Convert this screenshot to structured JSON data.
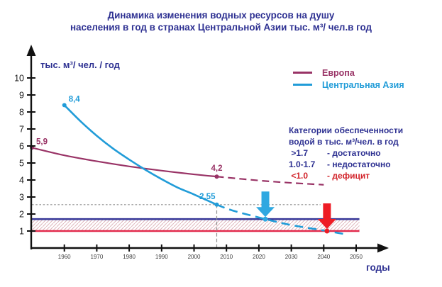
{
  "title": {
    "line1": "Динамика изменения водных ресурсов на душу",
    "line2": "населения в год в странах Центральной Азии тыс. м³/ чел.в год"
  },
  "legend": [
    {
      "label": "Европа",
      "color": "#993366"
    },
    {
      "label": "Центральная Азия",
      "color": "#219CD8"
    }
  ],
  "categories": {
    "heading_line1": "Категории обеспеченности",
    "heading_line2": "водой в тыс. м³/чел. в год",
    "rows": [
      {
        "range": ">1.7",
        "desc": "- достаточно",
        "color": "#2E3192"
      },
      {
        "range": "1.0-1.7",
        "desc": "- недостаточно",
        "color": "#2E3192"
      },
      {
        "range": "<1.0",
        "desc": "- дефицит",
        "color": "#D2232A"
      }
    ]
  },
  "chart_data": {
    "type": "line",
    "title": "Динамика изменения водных ресурсов на душу населения в год в странах Центральной Азии тыс. м³/ чел.в год",
    "ylabel": "тыс. м³/ чел. / год",
    "xlabel": "годы",
    "xlim": [
      1950,
      2056
    ],
    "ylim": [
      0,
      11.5
    ],
    "x_ticks": [
      1960,
      1970,
      1980,
      1990,
      2000,
      2010,
      2020,
      2030,
      2040,
      2050
    ],
    "y_ticks": [
      1,
      2,
      3,
      4,
      5,
      6,
      7,
      8,
      9,
      10
    ],
    "grid": false,
    "legend_position": "top-right",
    "series": [
      {
        "name": "Европа",
        "color": "#993366",
        "solid": [
          [
            1950,
            5.9
          ],
          [
            1960,
            5.45
          ],
          [
            1970,
            5.1
          ],
          [
            1980,
            4.8
          ],
          [
            1990,
            4.55
          ],
          [
            2000,
            4.33
          ],
          [
            2007,
            4.2
          ]
        ],
        "dashed": [
          [
            2007,
            4.2
          ],
          [
            2020,
            3.97
          ],
          [
            2030,
            3.83
          ],
          [
            2040,
            3.72
          ]
        ],
        "point_labels": [
          {
            "x": 1950,
            "y": 5.9,
            "text": "5,9",
            "placement": "right"
          },
          {
            "x": 2007,
            "y": 4.2,
            "text": "4,2",
            "placement": "above"
          }
        ]
      },
      {
        "name": "Центральная Азия",
        "color": "#219CD8",
        "solid": [
          [
            1960,
            8.4
          ],
          [
            1965,
            7.45
          ],
          [
            1970,
            6.6
          ],
          [
            1975,
            5.85
          ],
          [
            1980,
            5.2
          ],
          [
            1985,
            4.6
          ],
          [
            1990,
            4.05
          ],
          [
            1995,
            3.55
          ],
          [
            2000,
            3.15
          ],
          [
            2007,
            2.55
          ]
        ],
        "dashed": [
          [
            2007,
            2.55
          ],
          [
            2012,
            2.2
          ],
          [
            2022,
            1.7
          ],
          [
            2030,
            1.35
          ],
          [
            2041,
            1.0
          ],
          [
            2047,
            0.8
          ]
        ],
        "point_labels": [
          {
            "x": 1960,
            "y": 8.4,
            "text": "8,4",
            "placement": "right"
          },
          {
            "x": 2007,
            "y": 2.55,
            "text": "2,55",
            "placement": "above-left"
          }
        ]
      }
    ],
    "thresholds": {
      "upper_value": 1.7,
      "upper_color": "#3A3A99",
      "lower_value": 1.0,
      "lower_color": "#E22A4C",
      "band_end_year": 2051,
      "band_hatch_color": "#dfb8bf"
    },
    "helper_lines": {
      "h_value": 2.55,
      "h_end_year": 2039,
      "v_year": 2007,
      "v_top_value": 2.55,
      "color": "#909090"
    },
    "markers": [
      {
        "name": "blue-arrow",
        "year": 2022,
        "value": 1.7,
        "color": "#2FA8E1"
      },
      {
        "name": "red-arrow",
        "year": 2041,
        "value": 1.0,
        "color": "#EE1C25"
      }
    ]
  }
}
